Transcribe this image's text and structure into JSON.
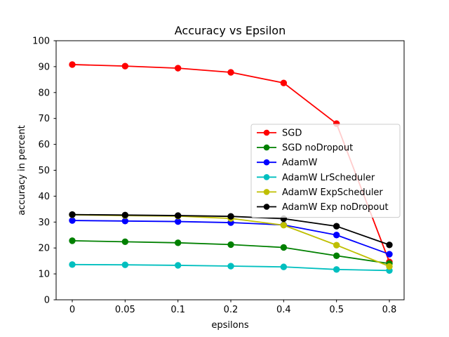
{
  "chart_data": {
    "type": "line",
    "title": "Accuracy vs Epsilon",
    "xlabel": "epsilons",
    "ylabel": "accuracy in percent",
    "categories": [
      "0",
      "0.05",
      "0.1",
      "0.2",
      "0.4",
      "0.5",
      "0.8"
    ],
    "ylim": [
      0,
      100
    ],
    "yticks": [
      0,
      10,
      20,
      30,
      40,
      50,
      60,
      70,
      80,
      90,
      100
    ],
    "grid": false,
    "legend_position": "center-right",
    "series": [
      {
        "name": "SGD",
        "color": "#ff0000",
        "values": [
          90.8,
          90.2,
          89.4,
          87.8,
          83.7,
          68.0,
          14.6
        ]
      },
      {
        "name": "SGD noDropout",
        "color": "#008000",
        "values": [
          22.8,
          22.4,
          22.0,
          21.3,
          20.2,
          17.0,
          14.0
        ]
      },
      {
        "name": "AdamW",
        "color": "#0000ff",
        "values": [
          30.6,
          30.4,
          30.2,
          29.8,
          28.9,
          25.0,
          17.6
        ]
      },
      {
        "name": "AdamW LrScheduler",
        "color": "#00bfbf",
        "values": [
          13.6,
          13.5,
          13.3,
          13.0,
          12.7,
          11.7,
          11.3
        ]
      },
      {
        "name": "AdamW ExpScheduler",
        "color": "#bfbf00",
        "values": [
          32.8,
          32.5,
          32.3,
          31.4,
          28.8,
          21.1,
          12.9
        ]
      },
      {
        "name": "AdamW Exp noDropout",
        "color": "#000000",
        "values": [
          32.9,
          32.7,
          32.5,
          32.2,
          31.3,
          28.4,
          21.2
        ]
      }
    ]
  }
}
